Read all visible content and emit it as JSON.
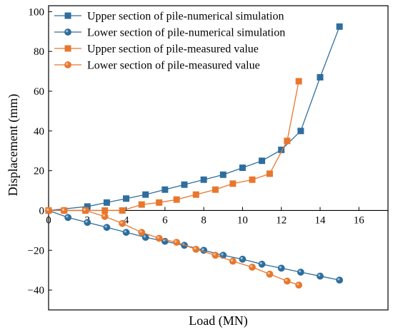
{
  "chart_data": {
    "type": "line",
    "title": "",
    "xlabel": "Load (MN)",
    "ylabel": "Displacement (mm)",
    "xlim": [
      0,
      17.5
    ],
    "ylim": [
      -50,
      103
    ],
    "xticks": [
      0,
      2,
      4,
      6,
      8,
      10,
      12,
      14,
      16
    ],
    "yticks": [
      -40,
      -20,
      0,
      20,
      40,
      60,
      80,
      100
    ],
    "grid": false,
    "legend_position": "top-left",
    "series": [
      {
        "name": "Upper section of pile-numerical simulation",
        "color": "#2E6E9E",
        "marker": "square",
        "x": [
          0,
          2,
          3,
          4,
          5,
          6,
          7,
          8,
          9,
          10,
          11,
          12,
          13,
          14,
          15
        ],
        "y": [
          0,
          2,
          4,
          6,
          8,
          10.5,
          13,
          15.5,
          18,
          21.5,
          25,
          30.5,
          40,
          67,
          92.5
        ]
      },
      {
        "name": "Lower section of pile-numerical simulation",
        "color": "#2E6E9E",
        "marker": "circle",
        "x": [
          0,
          1,
          2,
          3,
          4,
          5,
          6,
          7,
          8,
          9,
          10,
          11,
          12,
          13,
          14,
          15
        ],
        "y": [
          0,
          -3.5,
          -6,
          -8.5,
          -11,
          -13.5,
          -15.5,
          -17.5,
          -20,
          -22.5,
          -24.5,
          -27,
          -29,
          -31,
          -33,
          -35
        ]
      },
      {
        "name": "Upper section of pile-measured value",
        "color": "#E8772E",
        "marker": "square",
        "x": [
          0,
          0.8,
          1.9,
          2.9,
          3.8,
          4.8,
          5.7,
          6.6,
          7.6,
          8.6,
          9.5,
          10.5,
          11.4,
          12.3,
          12.9
        ],
        "y": [
          0,
          0,
          0,
          0,
          0,
          3,
          4,
          5.5,
          8,
          10.5,
          13.5,
          15.5,
          18.5,
          35,
          65
        ]
      },
      {
        "name": "Lower section of pile-measured value",
        "color": "#E8772E",
        "marker": "circle",
        "x": [
          0,
          0.8,
          1.9,
          2.9,
          3.8,
          4.8,
          5.7,
          6.6,
          7.6,
          8.6,
          9.5,
          10.5,
          11.4,
          12.3,
          12.9
        ],
        "y": [
          0,
          0,
          0,
          -3,
          -6.5,
          -11,
          -14,
          -16,
          -19.5,
          -22.5,
          -25.5,
          -28.5,
          -32,
          -35.5,
          -37.5
        ]
      }
    ]
  }
}
